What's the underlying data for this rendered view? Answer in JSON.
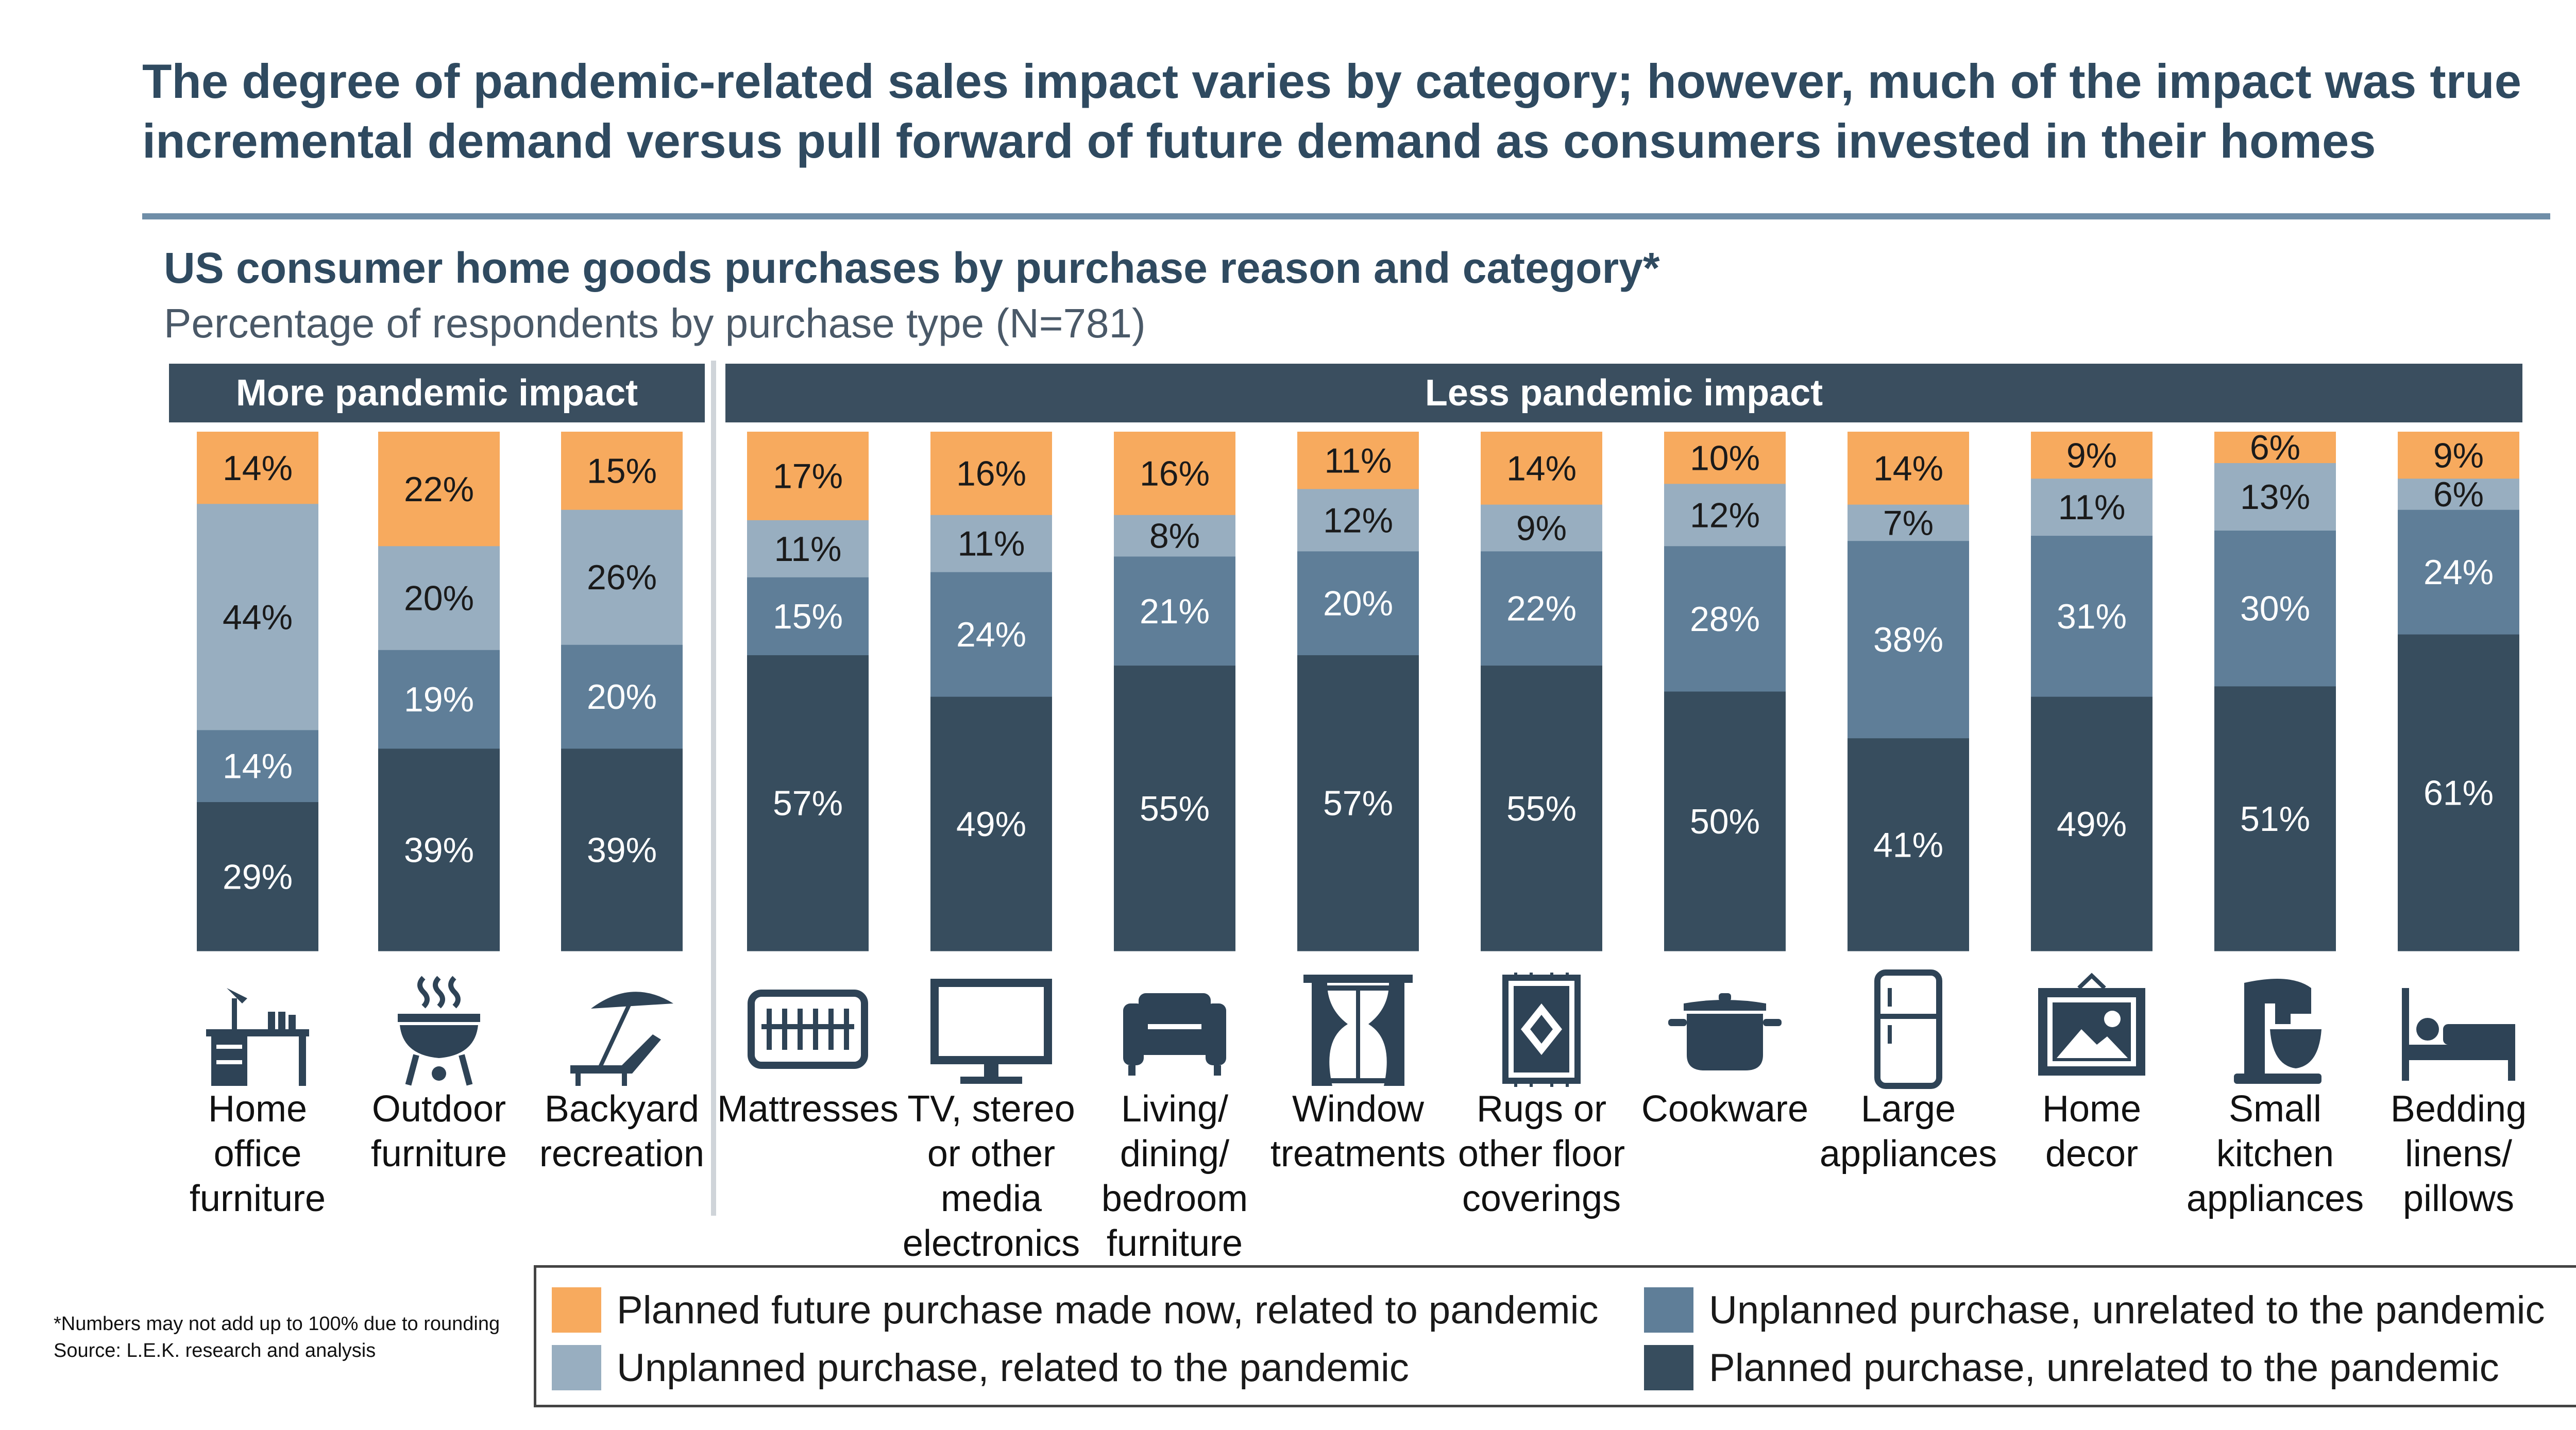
{
  "headline": "The degree of pandemic-related sales impact varies by category; however, much of the impact was true incremental demand versus pull forward of future demand as consumers invested in their homes",
  "subtitle": "US consumer home goods purchases by purchase reason and category*",
  "subtitle2": "Percentage of respondents by purchase type (N=781)",
  "groups": {
    "more": "More pandemic impact",
    "less": "Less pandemic impact"
  },
  "colors": {
    "planned_future": "#f7aa5e",
    "unplanned_related": "#98aec0",
    "unplanned_unrelated": "#5f7e98",
    "planned_unrelated": "#374d5e"
  },
  "icons": [
    "desk-icon",
    "grill-icon",
    "lounge-chair-icon",
    "mattress-icon",
    "tv-icon",
    "sofa-icon",
    "curtain-window-icon",
    "rug-icon",
    "pot-icon",
    "refrigerator-icon",
    "picture-frame-icon",
    "stand-mixer-icon",
    "bed-icon"
  ],
  "chart_data": {
    "type": "bar",
    "stacked": true,
    "percent_stacked": true,
    "categories": [
      "Home office furniture",
      "Outdoor furniture",
      "Backyard recreation",
      "Mattresses",
      "TV, stereo or other media electronics",
      "Living/ dining/ bedroom furniture",
      "Window treatments",
      "Rugs or other floor coverings",
      "Cookware",
      "Large appliances",
      "Home decor",
      "Small kitchen appliances",
      "Bedding linens/ pillows"
    ],
    "category_lines": [
      [
        "Home",
        "office",
        "furniture"
      ],
      [
        "Outdoor",
        "furniture"
      ],
      [
        "Backyard",
        "recreation"
      ],
      [
        "Mattresses"
      ],
      [
        "TV, stereo",
        "or other",
        "media",
        "electronics"
      ],
      [
        "Living/",
        "dining/",
        "bedroom",
        "furniture"
      ],
      [
        "Window",
        "treatments"
      ],
      [
        "Rugs or",
        "other floor",
        "coverings"
      ],
      [
        "Cookware"
      ],
      [
        "Large",
        "appliances"
      ],
      [
        "Home",
        "decor"
      ],
      [
        "Small",
        "kitchen",
        "appliances"
      ],
      [
        "Bedding",
        "linens/",
        "pillows"
      ]
    ],
    "category_groups": [
      "more",
      "more",
      "more",
      "less",
      "less",
      "less",
      "less",
      "less",
      "less",
      "less",
      "less",
      "less",
      "less"
    ],
    "series": [
      {
        "name": "Planned purchase, unrelated to the pandemic",
        "values": [
          29,
          39,
          39,
          57,
          49,
          55,
          57,
          55,
          50,
          41,
          49,
          51,
          61
        ]
      },
      {
        "name": "Unplanned purchase, unrelated to the pandemic",
        "values": [
          14,
          19,
          20,
          15,
          24,
          21,
          20,
          22,
          28,
          38,
          31,
          30,
          24
        ]
      },
      {
        "name": "Unplanned purchase, related to the pandemic",
        "values": [
          44,
          20,
          26,
          11,
          11,
          8,
          12,
          9,
          12,
          7,
          11,
          13,
          6
        ]
      },
      {
        "name": "Planned future purchase made now, related to pandemic",
        "values": [
          14,
          22,
          15,
          17,
          16,
          16,
          11,
          14,
          10,
          14,
          9,
          6,
          9
        ]
      }
    ],
    "ylim": [
      0,
      100
    ]
  },
  "legend": [
    {
      "label": "Planned future purchase made now, related to pandemic",
      "color": "#f7aa5e"
    },
    {
      "label": "Unplanned purchase, unrelated to the pandemic",
      "color": "#5f7e98"
    },
    {
      "label": "Unplanned purchase, related to the pandemic",
      "color": "#98aec0"
    },
    {
      "label": "Planned purchase, unrelated to the pandemic",
      "color": "#374d5e"
    }
  ],
  "footnote": {
    "line1": "*Numbers may not add up to 100% due to rounding",
    "line2": "Source: L.E.K. research and analysis"
  }
}
